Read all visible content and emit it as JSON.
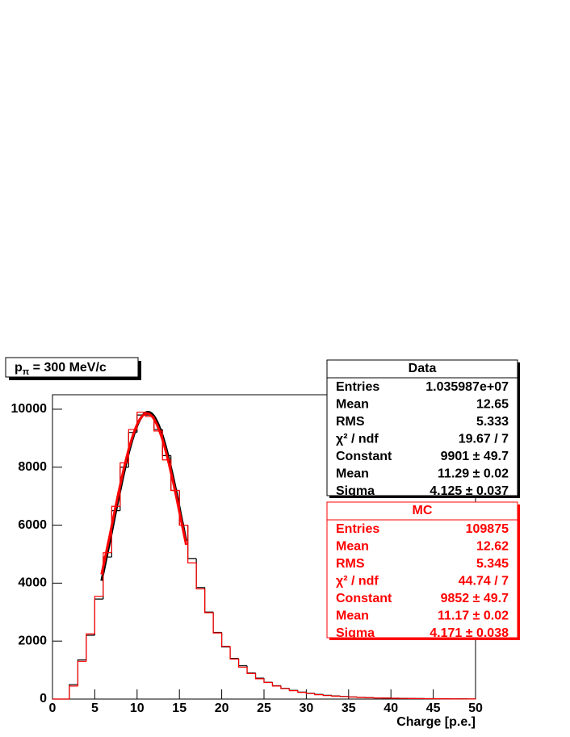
{
  "chart_data": {
    "type": "histogram",
    "title": {
      "main": "p",
      "sub": "π",
      "rest": " = 300 MeV/c"
    },
    "x_label": "Charge [p.e.]",
    "bins": [
      0,
      1,
      2,
      3,
      4,
      5,
      6,
      7,
      8,
      9,
      10,
      11,
      12,
      13,
      14,
      15,
      16,
      17,
      18,
      19,
      20,
      21,
      22,
      23,
      24,
      25,
      26,
      27,
      28,
      29,
      30,
      31,
      32,
      33,
      34,
      35,
      36,
      37,
      38,
      39,
      40,
      41,
      42,
      43,
      44,
      45,
      46,
      47,
      48,
      49,
      50
    ],
    "xlim": [
      0,
      50
    ],
    "xticks": [
      0,
      5,
      10,
      15,
      20,
      25,
      30,
      35,
      40,
      45,
      50
    ],
    "ylim": [
      0,
      10500
    ],
    "yticks": [
      0,
      2000,
      4000,
      6000,
      8000,
      10000
    ],
    "series": [
      {
        "name": "Data",
        "color": "#000000",
        "values": [
          0,
          0,
          500,
          1350,
          2200,
          3450,
          4900,
          6500,
          8000,
          9200,
          9800,
          9800,
          9300,
          8400,
          7200,
          6000,
          4850,
          3850,
          3000,
          2300,
          1800,
          1400,
          1150,
          900,
          720,
          580,
          460,
          370,
          300,
          240,
          200,
          160,
          130,
          110,
          90,
          75,
          60,
          50,
          40,
          35,
          30,
          25,
          20,
          18,
          15,
          12,
          10,
          8,
          6,
          5
        ],
        "fit": {
          "constant": 9901,
          "mean": 11.29,
          "sigma": 4.125,
          "range": [
            5.8,
            15.8
          ]
        },
        "stats": [
          [
            "Entries",
            "1.035987e+07"
          ],
          [
            "Mean",
            "12.65"
          ],
          [
            "RMS",
            "5.333"
          ],
          [
            "χ² / ndf",
            "19.67 / 7"
          ],
          [
            "Constant",
            "9901 ± 49.7"
          ],
          [
            "Mean",
            "11.29 ± 0.02"
          ],
          [
            "Sigma",
            "4.125 ± 0.037"
          ]
        ]
      },
      {
        "name": "MC",
        "color": "#ff0000",
        "values": [
          0,
          0,
          450,
          1300,
          2250,
          3550,
          5050,
          6650,
          8150,
          9300,
          9900,
          9750,
          9250,
          8250,
          7200,
          6000,
          4700,
          3800,
          2980,
          2280,
          1820,
          1380,
          1100,
          880,
          700,
          570,
          450,
          360,
          290,
          230,
          190,
          150,
          120,
          100,
          85,
          70,
          55,
          45,
          38,
          32,
          28,
          22,
          18,
          15,
          12,
          10,
          8,
          6,
          5,
          4
        ],
        "fit": {
          "constant": 9852,
          "mean": 11.17,
          "sigma": 4.171,
          "range": [
            5.8,
            15.8
          ]
        },
        "stats": [
          [
            "Entries",
            "109875"
          ],
          [
            "Mean",
            "12.62"
          ],
          [
            "RMS",
            "5.345"
          ],
          [
            "χ² / ndf",
            "44.74 / 7"
          ],
          [
            "Constant",
            "9852 ± 49.7"
          ],
          [
            "Mean",
            "11.17 ± 0.02"
          ],
          [
            "Sigma",
            "4.171 ± 0.038"
          ]
        ]
      }
    ]
  }
}
